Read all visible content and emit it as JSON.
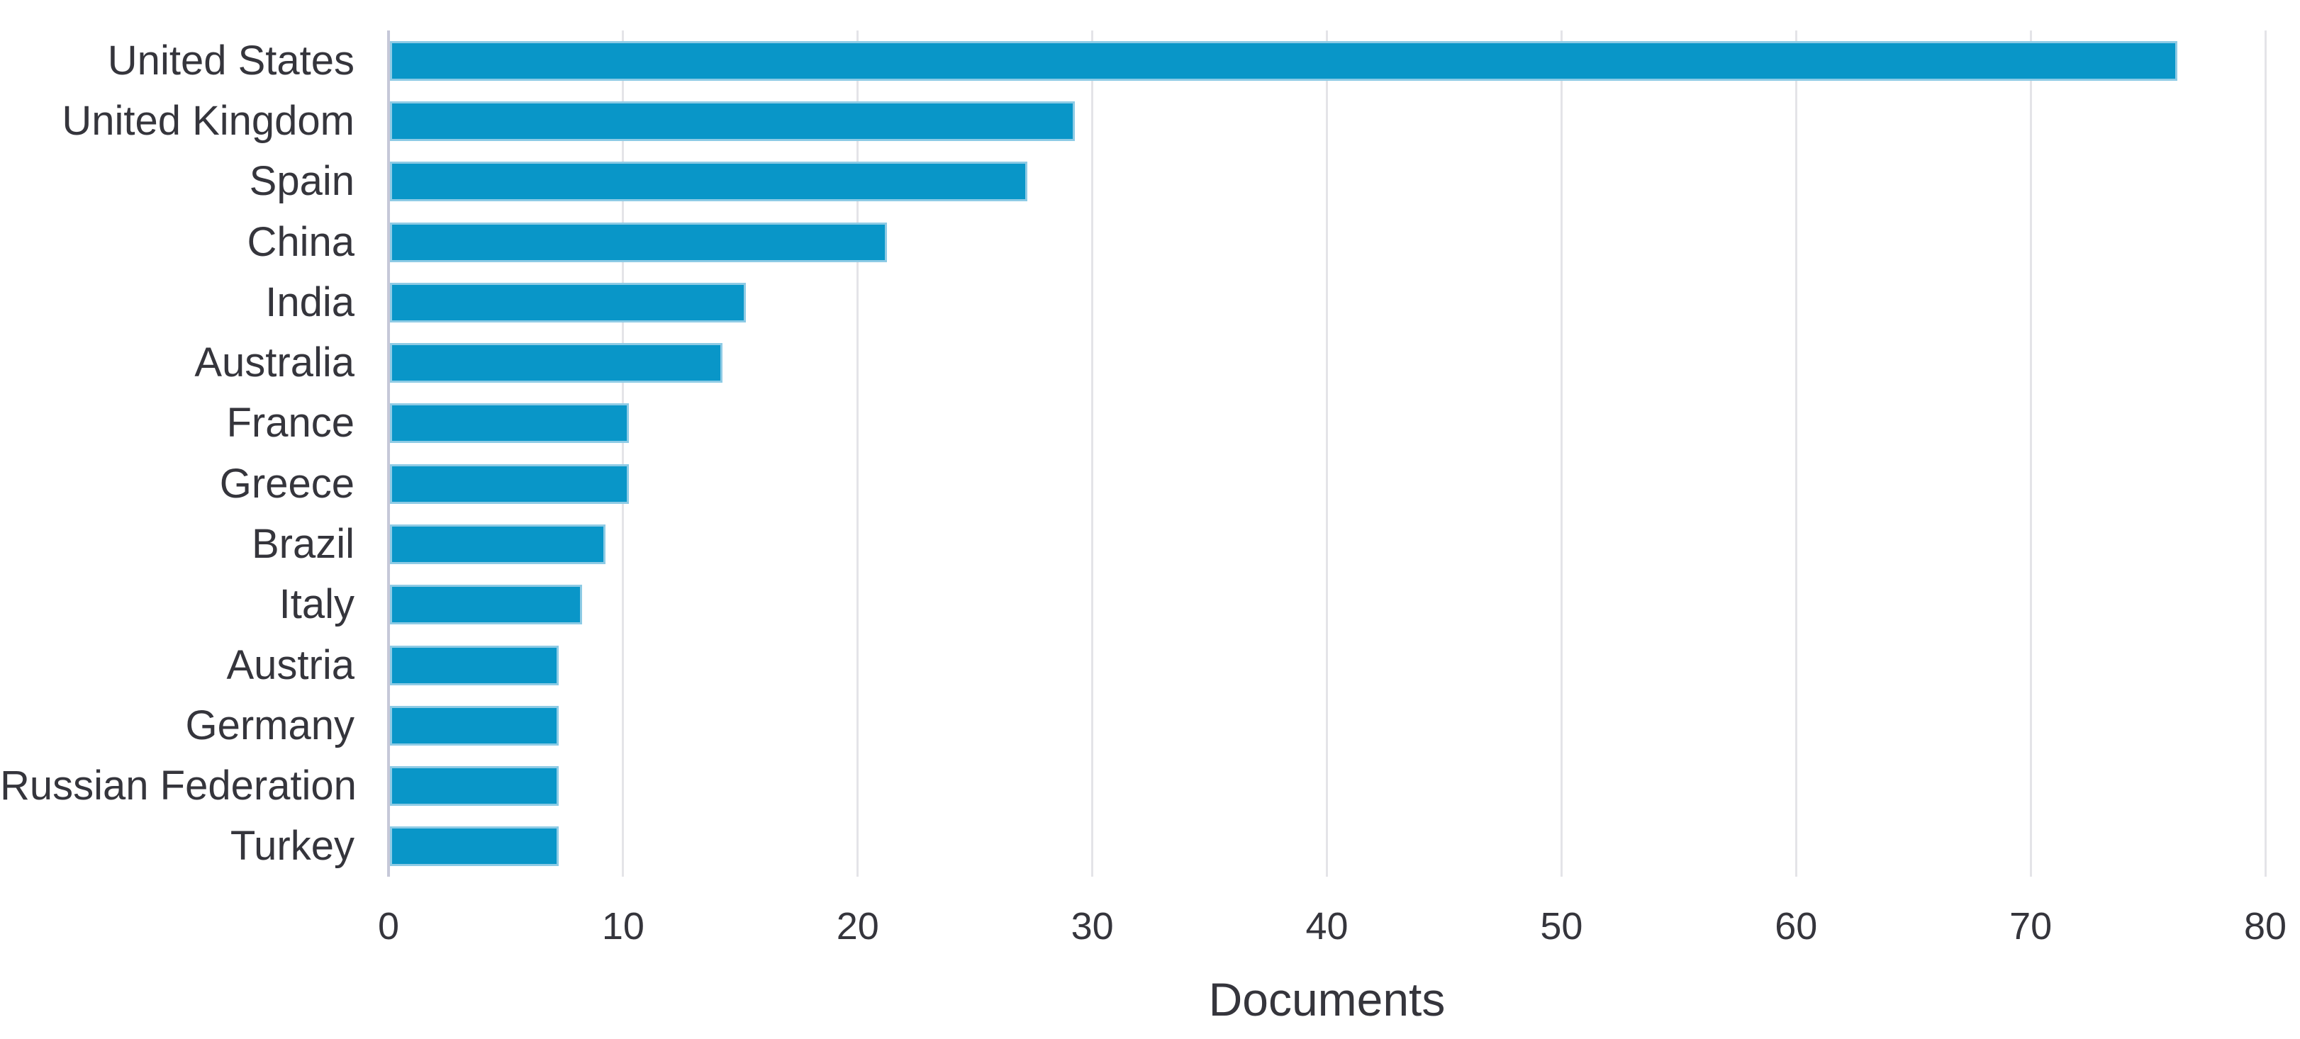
{
  "chart_data": {
    "type": "bar",
    "orientation": "horizontal",
    "title": "",
    "xlabel": "Documents",
    "ylabel": "",
    "categories": [
      "United States",
      "United Kingdom",
      "Spain",
      "China",
      "India",
      "Australia",
      "France",
      "Greece",
      "Brazil",
      "Italy",
      "Austria",
      "Germany",
      "Russian Federation",
      "Turkey"
    ],
    "values": [
      76,
      29,
      27,
      21,
      15,
      14,
      10,
      10,
      9,
      8,
      7,
      7,
      7,
      7
    ],
    "xlim": [
      0,
      80
    ],
    "xticks": [
      0,
      10,
      20,
      30,
      40,
      50,
      60,
      70,
      80
    ],
    "grid": "vertical-only",
    "legend": "none"
  },
  "colors": {
    "bar_fill": "#0996c8",
    "bar_edge": "#8ecbe5",
    "axis_line": "#c6c8d8",
    "gridline": "#e4e4e8",
    "text": "#35353c"
  }
}
